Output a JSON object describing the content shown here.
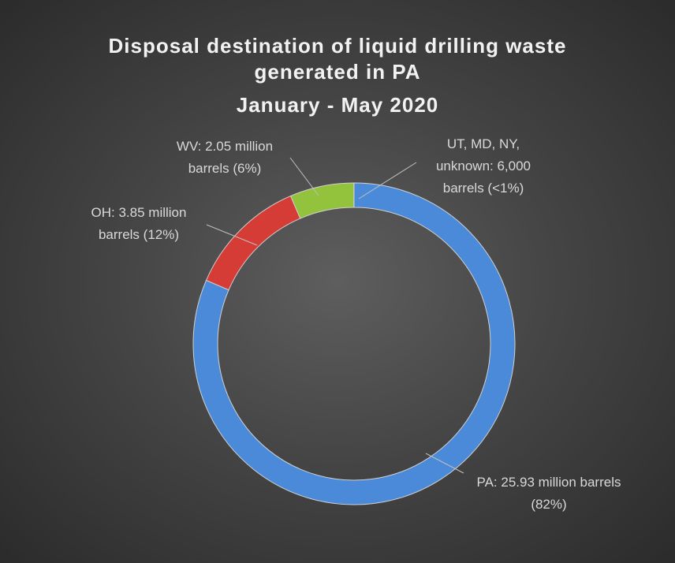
{
  "chart_data": {
    "type": "donut",
    "title": "Disposal destination of liquid drilling waste generated in PA",
    "subtitle": "January - May 2020",
    "values": [
      25.93,
      3.85,
      2.05,
      0.006
    ],
    "value_labels": [
      "PA: 25.93 million barrels (82%)",
      "OH: 3.85 million barrels (12%)",
      "WV: 2.05 million barrels (6%)",
      "UT, MD, NY, unknown: 6,000 barrels (<1%)"
    ],
    "colors": [
      "#4a8ad8",
      "#d63c36",
      "#93c23c",
      "#c9a227"
    ]
  }
}
